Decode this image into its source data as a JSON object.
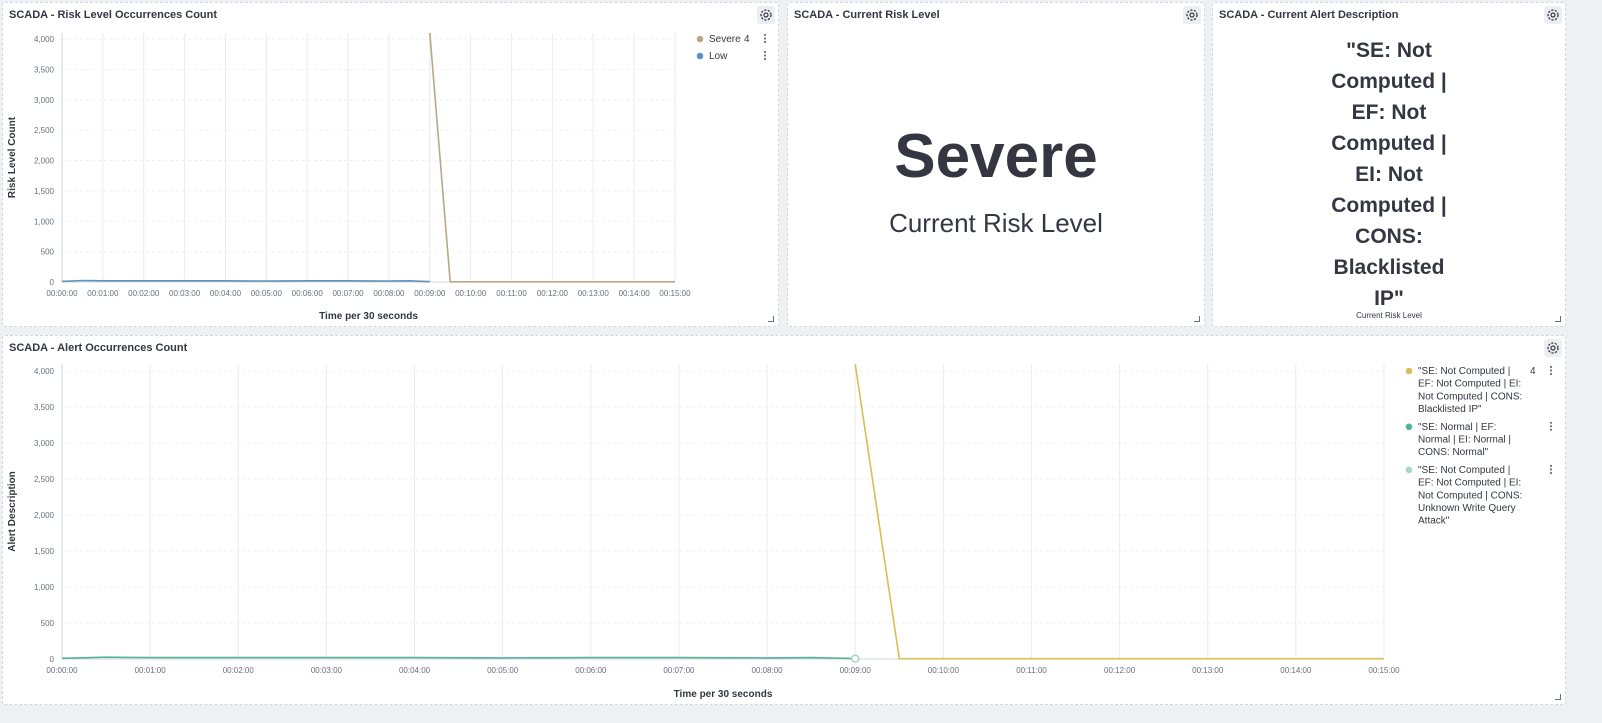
{
  "panels": {
    "risk_chart": {
      "title": "SCADA - Risk Level Occurrences Count"
    },
    "current_risk": {
      "title": "SCADA - Current Risk Level",
      "value": "Severe",
      "label": "Current Risk Level"
    },
    "current_alert": {
      "title": "SCADA - Current Alert Description",
      "value": "\"SE: Not Computed | EF: Not Computed | EI: Not Computed | CONS: Blacklisted IP\"",
      "label": "Current Risk Level"
    },
    "alert_chart": {
      "title": "SCADA - Alert Occurrences Count"
    }
  },
  "chart_data": [
    {
      "type": "line",
      "title": "SCADA - Risk Level Occurrences Count",
      "xlabel": "Time per 30 seconds",
      "ylabel": "Risk Level Count",
      "ylim": [
        0,
        4100
      ],
      "yticks": [
        0,
        500,
        1000,
        1500,
        2000,
        2500,
        3000,
        3500,
        4000
      ],
      "ytick_labels": [
        "0",
        "500",
        "1,000",
        "1,500",
        "2,000",
        "2,500",
        "3,000",
        "3,500",
        "4,000"
      ],
      "xticks": [
        "00:00:00",
        "00:01:00",
        "00:02:00",
        "00:03:00",
        "00:04:00",
        "00:05:00",
        "00:06:00",
        "00:07:00",
        "00:08:00",
        "00:09:00",
        "00:10:00",
        "00:11:00",
        "00:12:00",
        "00:13:00",
        "00:14:00",
        "00:15:00"
      ],
      "xlim_minutes": [
        0,
        15
      ],
      "grid": "vertical",
      "legend_position": "right",
      "series": [
        {
          "name": "Severe",
          "color": "#b9a888",
          "legend_value": "4",
          "x": [
            9.0,
            9.5,
            10.0,
            15.0
          ],
          "y": [
            4100,
            4,
            4,
            4
          ]
        },
        {
          "name": "Low",
          "color": "#6092c0",
          "x": [
            0,
            0.5,
            1,
            2,
            3,
            4,
            5,
            6,
            7,
            8,
            8.5,
            9
          ],
          "y": [
            10,
            25,
            20,
            20,
            20,
            20,
            15,
            20,
            20,
            15,
            20,
            5
          ]
        }
      ]
    },
    {
      "type": "line",
      "title": "SCADA - Alert Occurrences Count",
      "xlabel": "Time per 30 seconds",
      "ylabel": "Alert Description",
      "ylim": [
        0,
        4100
      ],
      "yticks": [
        0,
        500,
        1000,
        1500,
        2000,
        2500,
        3000,
        3500,
        4000
      ],
      "ytick_labels": [
        "0",
        "500",
        "1,000",
        "1,500",
        "2,000",
        "2,500",
        "3,000",
        "3,500",
        "4,000"
      ],
      "xticks": [
        "00:00:00",
        "00:01:00",
        "00:02:00",
        "00:03:00",
        "00:04:00",
        "00:05:00",
        "00:06:00",
        "00:07:00",
        "00:08:00",
        "00:09:00",
        "00:10:00",
        "00:11:00",
        "00:12:00",
        "00:13:00",
        "00:14:00",
        "00:15:00"
      ],
      "xlim_minutes": [
        0,
        15
      ],
      "grid": "vertical",
      "legend_position": "right",
      "series": [
        {
          "name": "\"SE: Not Computed | EF: Not Computed | EI: Not Computed | CONS: Blacklisted IP\"",
          "color": "#d6bf57",
          "legend_value": "4",
          "x": [
            9.0,
            9.5,
            10.0,
            15.0
          ],
          "y": [
            4100,
            4,
            4,
            4
          ]
        },
        {
          "name": "\"SE: Normal | EF: Normal | EI: Normal | CONS: Normal\"",
          "color": "#54b399",
          "x": [
            0,
            0.5,
            1,
            2,
            3,
            4,
            5,
            6,
            7,
            8,
            8.5,
            9
          ],
          "y": [
            10,
            25,
            20,
            20,
            20,
            20,
            15,
            20,
            20,
            15,
            20,
            5
          ]
        },
        {
          "name": "\"SE: Not Computed | EF: Not Computed | EI: Not Computed | CONS: Unknown Write Query Attack\"",
          "color": "#a5d8c7",
          "x": [
            9.0
          ],
          "y": [
            5
          ]
        }
      ]
    }
  ]
}
